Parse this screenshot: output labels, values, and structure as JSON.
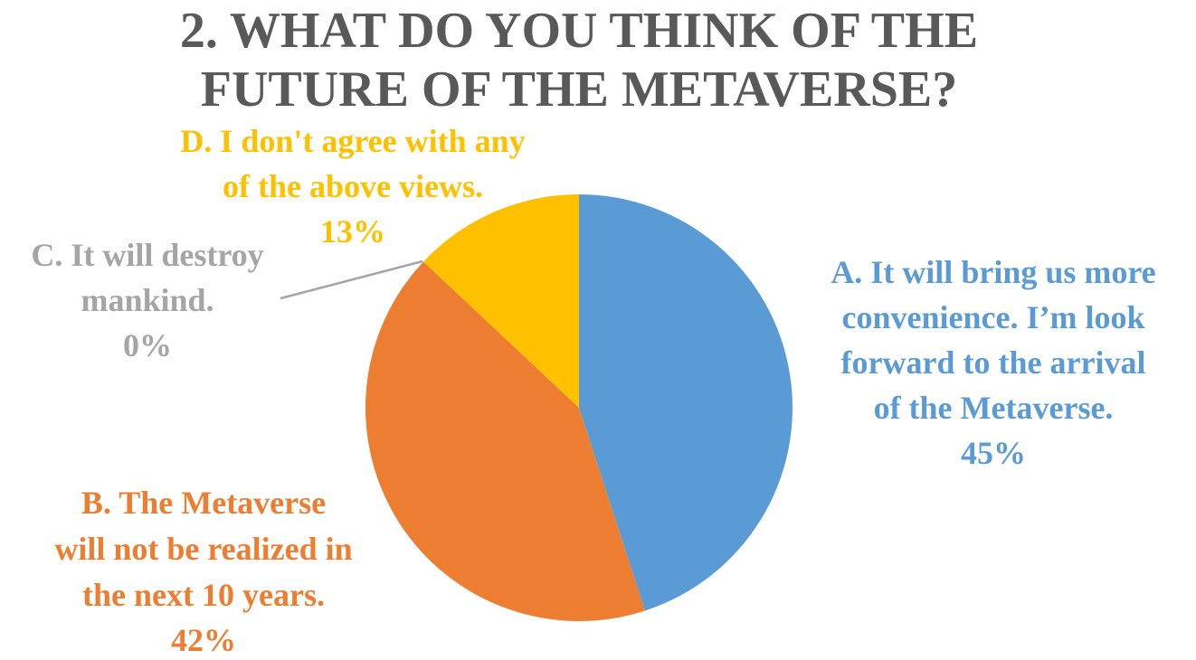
{
  "chart_data": {
    "type": "pie",
    "title_lines": [
      "2. WHAT DO YOU THINK OF THE",
      "FUTURE OF THE METAVERSE?"
    ],
    "slices": [
      {
        "key": "a",
        "label_lines": [
          "A. It will bring us more",
          "convenience. I’m look",
          "forward to the arrival",
          "of the Metaverse."
        ],
        "value_label": "45%",
        "value": 45,
        "color": "#5b9bd5"
      },
      {
        "key": "b",
        "label_lines": [
          "B. The Metaverse",
          "will not be realized in",
          "the next 10 years."
        ],
        "value_label": "42%",
        "value": 42,
        "color": "#ed7d31"
      },
      {
        "key": "c",
        "label_lines": [
          "C. It will destroy",
          "mankind."
        ],
        "value_label": "0%",
        "value": 0,
        "color": "#a5a5a5"
      },
      {
        "key": "d",
        "label_lines": [
          "D. I don't agree with any",
          "of the above views."
        ],
        "value_label": "13%",
        "value": 13,
        "color": "#ffc000"
      }
    ],
    "legend": "none"
  }
}
